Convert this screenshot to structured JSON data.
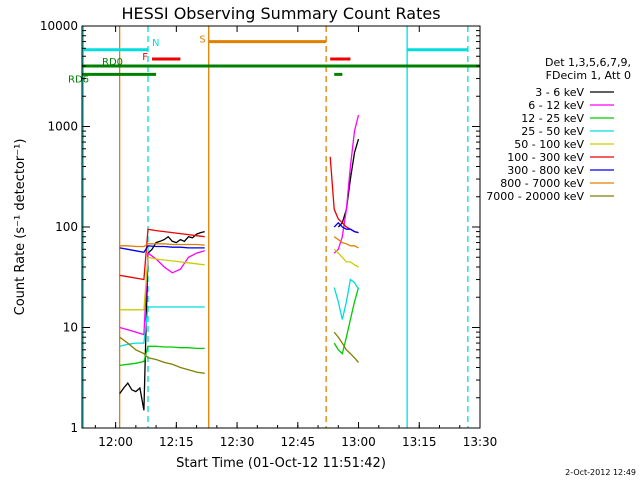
{
  "chart_data": {
    "type": "line",
    "title": "HESSI Observing Summary Count Rates",
    "xlabel": "Start Time (01-Oct-12 11:51:42)",
    "ylabel": "Count Rate (s⁻¹ detector⁻¹)",
    "y_scale": "log",
    "ylim": [
      1,
      10000
    ],
    "xlim": [
      "11:51:42",
      "13:30:00"
    ],
    "x_ticks": [
      "12:00",
      "12:15",
      "12:30",
      "12:45",
      "13:00",
      "13:15",
      "13:30"
    ],
    "y_ticks": [
      "1",
      "10",
      "100",
      "1000",
      "10000"
    ],
    "legend_title": [
      "Det 1,3,5,6,7,9,",
      "FDecim 1, Att 0"
    ],
    "legend_position": "right",
    "footer": "2-Oct-2012 12:49",
    "series": [
      {
        "name": "3 - 6 keV",
        "color": "#000000",
        "segments": [
          {
            "x": [
              "12:01",
              "12:02",
              "12:03",
              "12:04",
              "12:05",
              "12:06",
              "12:07",
              "12:08",
              "12:09",
              "12:10",
              "12:11",
              "12:12",
              "12:13",
              "12:14",
              "12:15",
              "12:16",
              "12:17",
              "12:18",
              "12:19",
              "12:20",
              "12:21",
              "12:22"
            ],
            "y": [
              2.2,
              2.5,
              2.8,
              2.4,
              2.3,
              2.5,
              1.5,
              55,
              60,
              70,
              72,
              75,
              80,
              72,
              70,
              75,
              72,
              80,
              78,
              85,
              88,
              90
            ]
          },
          {
            "x": [
              "12:55",
              "12:56",
              "12:57",
              "12:58",
              "12:59",
              "13:00"
            ],
            "y": [
              100,
              110,
              150,
              300,
              550,
              750
            ]
          }
        ]
      },
      {
        "name": "6 - 12 keV",
        "color": "#ff00ff",
        "segments": [
          {
            "x": [
              "12:01",
              "12:03",
              "12:05",
              "12:07",
              "12:08",
              "12:10",
              "12:12",
              "12:14",
              "12:16",
              "12:18",
              "12:20",
              "12:22"
            ],
            "y": [
              10,
              9.5,
              9,
              8.5,
              55,
              48,
              40,
              35,
              38,
              50,
              55,
              58
            ]
          },
          {
            "x": [
              "12:54",
              "12:55",
              "12:56",
              "12:57",
              "12:58",
              "12:59",
              "13:00"
            ],
            "y": [
              55,
              60,
              80,
              150,
              400,
              900,
              1300
            ]
          }
        ]
      },
      {
        "name": "12 - 25 keV",
        "color": "#00cc00",
        "segments": [
          {
            "x": [
              "12:01",
              "12:03",
              "12:05",
              "12:07",
              "12:08",
              "12:10",
              "12:12",
              "12:14",
              "12:16",
              "12:18",
              "12:20",
              "12:22"
            ],
            "y": [
              4.2,
              4.3,
              4.4,
              4.6,
              6.5,
              6.5,
              6.4,
              6.4,
              6.3,
              6.3,
              6.2,
              6.2
            ]
          },
          {
            "x": [
              "12:54",
              "12:55",
              "12:56",
              "12:57",
              "12:58",
              "12:59",
              "13:00"
            ],
            "y": [
              7,
              6,
              5.5,
              8,
              12,
              18,
              25
            ]
          }
        ]
      },
      {
        "name": "25 - 50 keV",
        "color": "#00dddd",
        "segments": [
          {
            "x": [
              "12:01",
              "12:03",
              "12:05",
              "12:07",
              "12:08",
              "12:10",
              "12:12",
              "12:14",
              "12:16",
              "12:18",
              "12:20",
              "12:22"
            ],
            "y": [
              6.5,
              6.8,
              7,
              7,
              16,
              16,
              16,
              16,
              16,
              16,
              16,
              16
            ]
          },
          {
            "x": [
              "12:54",
              "12:55",
              "12:56",
              "12:57",
              "12:58",
              "12:59",
              "13:00"
            ],
            "y": [
              25,
              18,
              12,
              18,
              30,
              28,
              24
            ]
          }
        ]
      },
      {
        "name": "50 - 100 keV",
        "color": "#cccc00",
        "segments": [
          {
            "x": [
              "12:01",
              "12:03",
              "12:05",
              "12:07",
              "12:08",
              "12:10",
              "12:12",
              "12:14",
              "12:16",
              "12:18",
              "12:20",
              "12:22"
            ],
            "y": [
              15,
              15,
              15,
              15,
              50,
              48,
              47,
              46,
              45,
              44,
              43,
              42
            ]
          },
          {
            "x": [
              "12:54",
              "12:55",
              "12:56",
              "12:57",
              "12:58",
              "12:59",
              "13:00"
            ],
            "y": [
              60,
              55,
              50,
              45,
              45,
              42,
              40
            ]
          }
        ]
      },
      {
        "name": "100 - 300 keV",
        "color": "#ee0000",
        "segments": [
          {
            "x": [
              "12:01",
              "12:03",
              "12:05",
              "12:07",
              "12:08",
              "12:10",
              "12:12",
              "12:14",
              "12:16",
              "12:18",
              "12:20",
              "12:22"
            ],
            "y": [
              33,
              32,
              31,
              30,
              95,
              92,
              90,
              88,
              86,
              84,
              82,
              80
            ]
          },
          {
            "x": [
              "12:53",
              "12:54",
              "12:55",
              "12:56",
              "12:57",
              "12:58",
              "12:59",
              "13:00"
            ],
            "y": [
              500,
              150,
              120,
              110,
              100,
              95,
              90,
              88
            ]
          }
        ]
      },
      {
        "name": "300 - 800 keV",
        "color": "#0000ee",
        "segments": [
          {
            "x": [
              "12:01",
              "12:03",
              "12:05",
              "12:07",
              "12:08",
              "12:10",
              "12:12",
              "12:14",
              "12:16",
              "12:18",
              "12:20",
              "12:22"
            ],
            "y": [
              62,
              60,
              58,
              56,
              65,
              64,
              64,
              63,
              63,
              62,
              62,
              62
            ]
          },
          {
            "x": [
              "12:54",
              "12:55",
              "12:56",
              "12:57",
              "12:58",
              "12:59",
              "13:00"
            ],
            "y": [
              100,
              110,
              100,
              95,
              95,
              90,
              88
            ]
          }
        ]
      },
      {
        "name": "800 - 7000 keV",
        "color": "#e08000",
        "segments": [
          {
            "x": [
              "12:01",
              "12:03",
              "12:05",
              "12:07",
              "12:08",
              "12:10",
              "12:12",
              "12:14",
              "12:16",
              "12:18",
              "12:20",
              "12:22"
            ],
            "y": [
              65,
              65,
              64,
              64,
              68,
              68,
              68,
              67,
              67,
              67,
              67,
              66
            ]
          },
          {
            "x": [
              "12:54",
              "12:55",
              "12:56",
              "12:57",
              "12:58",
              "12:59",
              "13:00"
            ],
            "y": [
              80,
              75,
              70,
              68,
              65,
              65,
              62
            ]
          }
        ]
      },
      {
        "name": "7000 - 20000 keV",
        "color": "#808000",
        "segments": [
          {
            "x": [
              "12:01",
              "12:03",
              "12:05",
              "12:07",
              "12:08",
              "12:10",
              "12:12",
              "12:14",
              "12:16",
              "12:18",
              "12:20",
              "12:22"
            ],
            "y": [
              8,
              7,
              6,
              5.5,
              5,
              4.8,
              4.5,
              4.3,
              4,
              3.8,
              3.6,
              3.5
            ]
          },
          {
            "x": [
              "12:54",
              "12:55",
              "12:56",
              "12:57",
              "12:58",
              "12:59",
              "13:00"
            ],
            "y": [
              9,
              8,
              7,
              6,
              5.5,
              5,
              4.5
            ]
          }
        ]
      }
    ],
    "flag_bars": [
      {
        "label": "N",
        "color": "#00dddd",
        "y": 5800,
        "ranges": [
          [
            "11:51:42",
            "12:08"
          ],
          [
            "13:12",
            "13:27"
          ]
        ]
      },
      {
        "label": "F",
        "color": "#ee0000",
        "y": 4700,
        "ranges": [
          [
            "12:09",
            "12:16"
          ],
          [
            "12:53",
            "12:58"
          ]
        ]
      },
      {
        "label": "S",
        "color": "#e08000",
        "y": 7000,
        "ranges": [
          [
            "12:23",
            "12:52"
          ]
        ]
      },
      {
        "label": "RD0",
        "color": "#008000",
        "y": 4000,
        "ranges": [
          [
            "11:51:42",
            "13:30:00"
          ]
        ]
      },
      {
        "label": "RD6",
        "color": "#008000",
        "y": 3300,
        "ranges": [
          [
            "11:51:42",
            "12:10"
          ],
          [
            "12:54",
            "12:56"
          ]
        ]
      }
    ],
    "vertical_markers": [
      {
        "time": "11:52",
        "color": "#00dddd",
        "style": "solid"
      },
      {
        "time": "12:08",
        "color": "#00dddd",
        "style": "dashed"
      },
      {
        "time": "12:01",
        "color": "#e08000",
        "style": "solid"
      },
      {
        "time": "12:23",
        "color": "#e08000",
        "style": "solid"
      },
      {
        "time": "12:52",
        "color": "#e08000",
        "style": "dashed"
      },
      {
        "time": "13:12",
        "color": "#00dddd",
        "style": "solid"
      },
      {
        "time": "13:27",
        "color": "#00dddd",
        "style": "dashed"
      }
    ]
  }
}
